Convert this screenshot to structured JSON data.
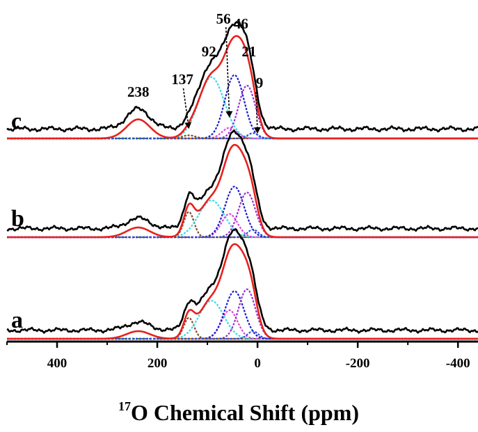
{
  "chart_data": {
    "type": "line",
    "xlabel_sup": "17",
    "xlabel": "O Chemical Shift (ppm)",
    "xlim": [
      500,
      -440
    ],
    "x_reversed": true,
    "xticks": [
      400,
      200,
      0,
      -200,
      -400
    ],
    "xtick_labels": [
      "400",
      "200",
      "0",
      "-200",
      "-400"
    ],
    "colors": {
      "experimental": "#000000",
      "fit": "#e8201c",
      "baseline": "#3a7a46",
      "gauss_238": "#e8801c",
      "gauss_137": "#7a4a2a",
      "gauss_92": "#33dde6",
      "gauss_56": "#e040e0",
      "gauss_46": "#1a1ad0",
      "gauss_21": "#9a30d0",
      "gauss_9": "#3050d0"
    },
    "panels": [
      {
        "label": "c",
        "peak_labels": [
          {
            "text": "238",
            "ppm": 238
          },
          {
            "text": "137",
            "ppm": 137
          },
          {
            "text": "92",
            "ppm": 92
          },
          {
            "text": "56",
            "ppm": 56
          },
          {
            "text": "46",
            "ppm": 46
          },
          {
            "text": "21",
            "ppm": 21
          },
          {
            "text": "9",
            "ppm": 9
          }
        ],
        "components": [
          {
            "center": 238,
            "amp": 0.18,
            "fwhm": 55,
            "color_key": "gauss_238"
          },
          {
            "center": 137,
            "amp": 0.03,
            "fwhm": 30,
            "color_key": "gauss_137"
          },
          {
            "center": 92,
            "amp": 0.58,
            "fwhm": 60,
            "color_key": "gauss_92"
          },
          {
            "center": 56,
            "amp": 0.1,
            "fwhm": 35,
            "color_key": "gauss_56"
          },
          {
            "center": 46,
            "amp": 0.6,
            "fwhm": 45,
            "color_key": "gauss_46"
          },
          {
            "center": 21,
            "amp": 0.5,
            "fwhm": 40,
            "color_key": "gauss_21"
          },
          {
            "center": 9,
            "amp": 0.05,
            "fwhm": 25,
            "color_key": "gauss_9"
          }
        ]
      },
      {
        "label": "b",
        "peak_labels": [],
        "components": [
          {
            "center": 238,
            "amp": 0.1,
            "fwhm": 55,
            "color_key": "gauss_238"
          },
          {
            "center": 137,
            "amp": 0.26,
            "fwhm": 24,
            "color_key": "gauss_137"
          },
          {
            "center": 92,
            "amp": 0.38,
            "fwhm": 60,
            "color_key": "gauss_92"
          },
          {
            "center": 56,
            "amp": 0.24,
            "fwhm": 38,
            "color_key": "gauss_56"
          },
          {
            "center": 46,
            "amp": 0.52,
            "fwhm": 45,
            "color_key": "gauss_46"
          },
          {
            "center": 21,
            "amp": 0.46,
            "fwhm": 40,
            "color_key": "gauss_21"
          },
          {
            "center": 9,
            "amp": 0.08,
            "fwhm": 25,
            "color_key": "gauss_9"
          }
        ]
      },
      {
        "label": "a",
        "peak_labels": [],
        "components": [
          {
            "center": 238,
            "amp": 0.08,
            "fwhm": 55,
            "color_key": "gauss_238"
          },
          {
            "center": 137,
            "amp": 0.22,
            "fwhm": 24,
            "color_key": "gauss_137"
          },
          {
            "center": 92,
            "amp": 0.4,
            "fwhm": 58,
            "color_key": "gauss_92"
          },
          {
            "center": 56,
            "amp": 0.3,
            "fwhm": 38,
            "color_key": "gauss_56"
          },
          {
            "center": 46,
            "amp": 0.5,
            "fwhm": 45,
            "color_key": "gauss_46"
          },
          {
            "center": 21,
            "amp": 0.52,
            "fwhm": 40,
            "color_key": "gauss_21"
          },
          {
            "center": 9,
            "amp": 0.08,
            "fwhm": 25,
            "color_key": "gauss_9"
          }
        ]
      }
    ]
  }
}
